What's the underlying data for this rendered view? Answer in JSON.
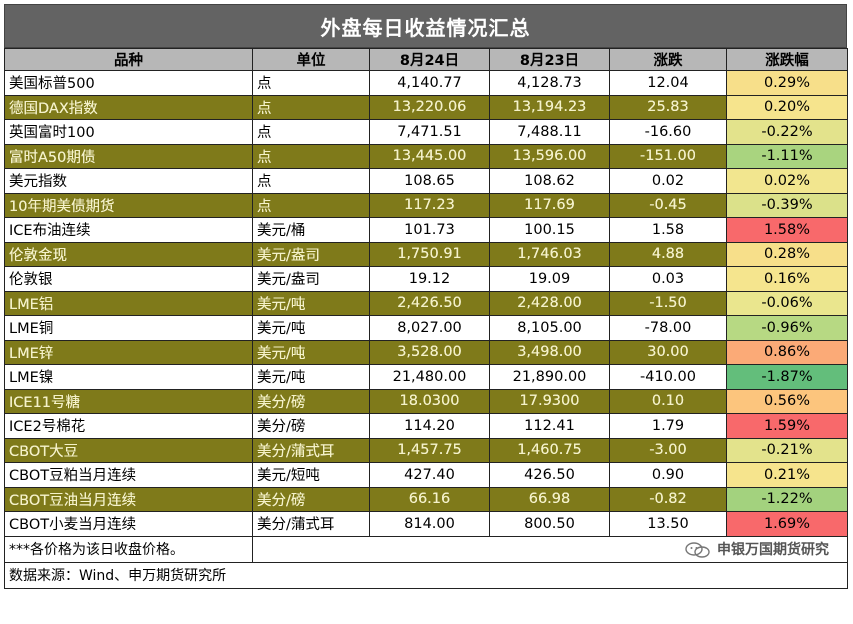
{
  "title": "外盘每日收益情况汇总",
  "headers": [
    "品种",
    "单位",
    "8月24日",
    "8月23日",
    "涨跌",
    "涨跌幅"
  ],
  "rows": [
    {
      "name": "美国标普500",
      "unit": "点",
      "d24": "4,140.77",
      "d23": "4,128.73",
      "chg": "12.04",
      "pct": "0.29%",
      "pct_color": "#f7df8a"
    },
    {
      "name": "德国DAX指数",
      "unit": "点",
      "d24": "13,220.06",
      "d23": "13,194.23",
      "chg": "25.83",
      "pct": "0.20%",
      "pct_color": "#f6e48d"
    },
    {
      "name": "英国富时100",
      "unit": "点",
      "d24": "7,471.51",
      "d23": "7,488.11",
      "chg": "-16.60",
      "pct": "-0.22%",
      "pct_color": "#e3e38c"
    },
    {
      "name": "富时A50期债",
      "unit": "点",
      "d24": "13,445.00",
      "d23": "13,596.00",
      "chg": "-151.00",
      "pct": "-1.11%",
      "pct_color": "#a9d47f"
    },
    {
      "name": "美元指数",
      "unit": "点",
      "d24": "108.65",
      "d23": "108.62",
      "chg": "0.02",
      "pct": "0.02%",
      "pct_color": "#f2e68f"
    },
    {
      "name": "10年期美债期货",
      "unit": "点",
      "d24": "117.23",
      "d23": "117.69",
      "chg": "-0.45",
      "pct": "-0.39%",
      "pct_color": "#dbe18a"
    },
    {
      "name": "ICE布油连续",
      "unit": "美元/桶",
      "d24": "101.73",
      "d23": "100.15",
      "chg": "1.58",
      "pct": "1.58%",
      "pct_color": "#f8696b"
    },
    {
      "name": "伦敦金现",
      "unit": "美元/盎司",
      "d24": "1,750.91",
      "d23": "1,746.03",
      "chg": "4.88",
      "pct": "0.28%",
      "pct_color": "#f7df8a"
    },
    {
      "name": "伦敦银",
      "unit": "美元/盎司",
      "d24": "19.12",
      "d23": "19.09",
      "chg": "0.03",
      "pct": "0.16%",
      "pct_color": "#f5e58e"
    },
    {
      "name": "LME铝",
      "unit": "美元/吨",
      "d24": "2,426.50",
      "d23": "2,428.00",
      "chg": "-1.50",
      "pct": "-0.06%",
      "pct_color": "#eae68e"
    },
    {
      "name": "LME铜",
      "unit": "美元/吨",
      "d24": "8,027.00",
      "d23": "8,105.00",
      "chg": "-78.00",
      "pct": "-0.96%",
      "pct_color": "#b7d983"
    },
    {
      "name": "LME锌",
      "unit": "美元/吨",
      "d24": "3,528.00",
      "d23": "3,498.00",
      "chg": "30.00",
      "pct": "0.86%",
      "pct_color": "#fbaa77"
    },
    {
      "name": "LME镍",
      "unit": "美元/吨",
      "d24": "21,480.00",
      "d23": "21,890.00",
      "chg": "-410.00",
      "pct": "-1.87%",
      "pct_color": "#63be7b"
    },
    {
      "name": "ICE11号糖",
      "unit": "美分/磅",
      "d24": "18.0300",
      "d23": "17.9300",
      "chg": "0.10",
      "pct": "0.56%",
      "pct_color": "#fcc57d"
    },
    {
      "name": "ICE2号棉花",
      "unit": "美分/磅",
      "d24": "114.20",
      "d23": "112.41",
      "chg": "1.79",
      "pct": "1.59%",
      "pct_color": "#f8696b"
    },
    {
      "name": "CBOT大豆",
      "unit": "美分/蒲式耳",
      "d24": "1,457.75",
      "d23": "1,460.75",
      "chg": "-3.00",
      "pct": "-0.21%",
      "pct_color": "#e3e38c"
    },
    {
      "name": "CBOT豆粕当月连续",
      "unit": "美元/短吨",
      "d24": "427.40",
      "d23": "426.50",
      "chg": "0.90",
      "pct": "0.21%",
      "pct_color": "#f6e48d"
    },
    {
      "name": "CBOT豆油当月连续",
      "unit": "美分/磅",
      "d24": "66.16",
      "d23": "66.98",
      "chg": "-0.82",
      "pct": "-1.22%",
      "pct_color": "#a3d27e"
    },
    {
      "name": "CBOT小麦当月连续",
      "unit": "美分/蒲式耳",
      "d24": "814.00",
      "d23": "800.50",
      "chg": "13.50",
      "pct": "1.69%",
      "pct_color": "#f8696b"
    }
  ],
  "band_color": "#7f7a1a",
  "header_color": "#b7b7b7",
  "title_color": "#636363",
  "note": "***各价格为该日收盘价格。",
  "brand": "申银万国期货研究",
  "brand_icon": "wechat-icon",
  "source": "数据来源：Wind、申万期货研究所"
}
